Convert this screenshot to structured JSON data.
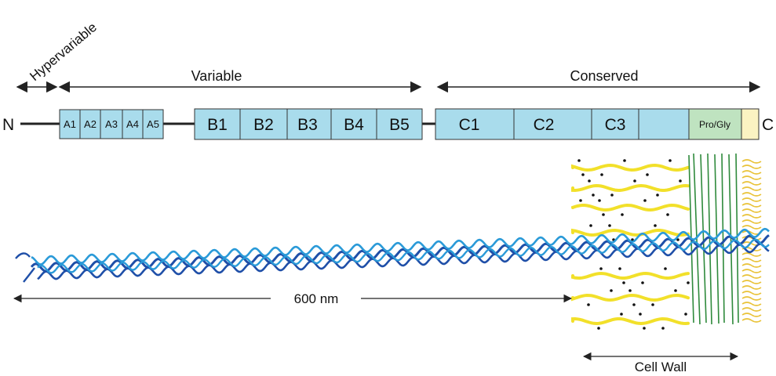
{
  "regions": {
    "hypervariable": "Hypervariable",
    "variable": "Variable",
    "conserved": "Conserved"
  },
  "termini": {
    "n": "N",
    "c": "C"
  },
  "repeats": {
    "a": [
      "A1",
      "A2",
      "A3",
      "A4",
      "A5"
    ],
    "b": [
      "B1",
      "B2",
      "B3",
      "B4",
      "B5"
    ],
    "c": [
      "C1",
      "C2",
      "C3",
      ""
    ],
    "pro_gly": "Pro/Gly"
  },
  "length_label": "600 nm",
  "cell_wall_label": "Cell Wall",
  "colors": {
    "repeat_fill": "#a9dcec",
    "pro_gly_fill": "#bfe3c0",
    "anchor_fill": "#fbf3c2",
    "helix_dark": "#1f4fa8",
    "helix_light": "#2a9ad8",
    "lipid": "#f2e02a",
    "wall_fiber": "#2f8a3c",
    "line": "#222222"
  }
}
